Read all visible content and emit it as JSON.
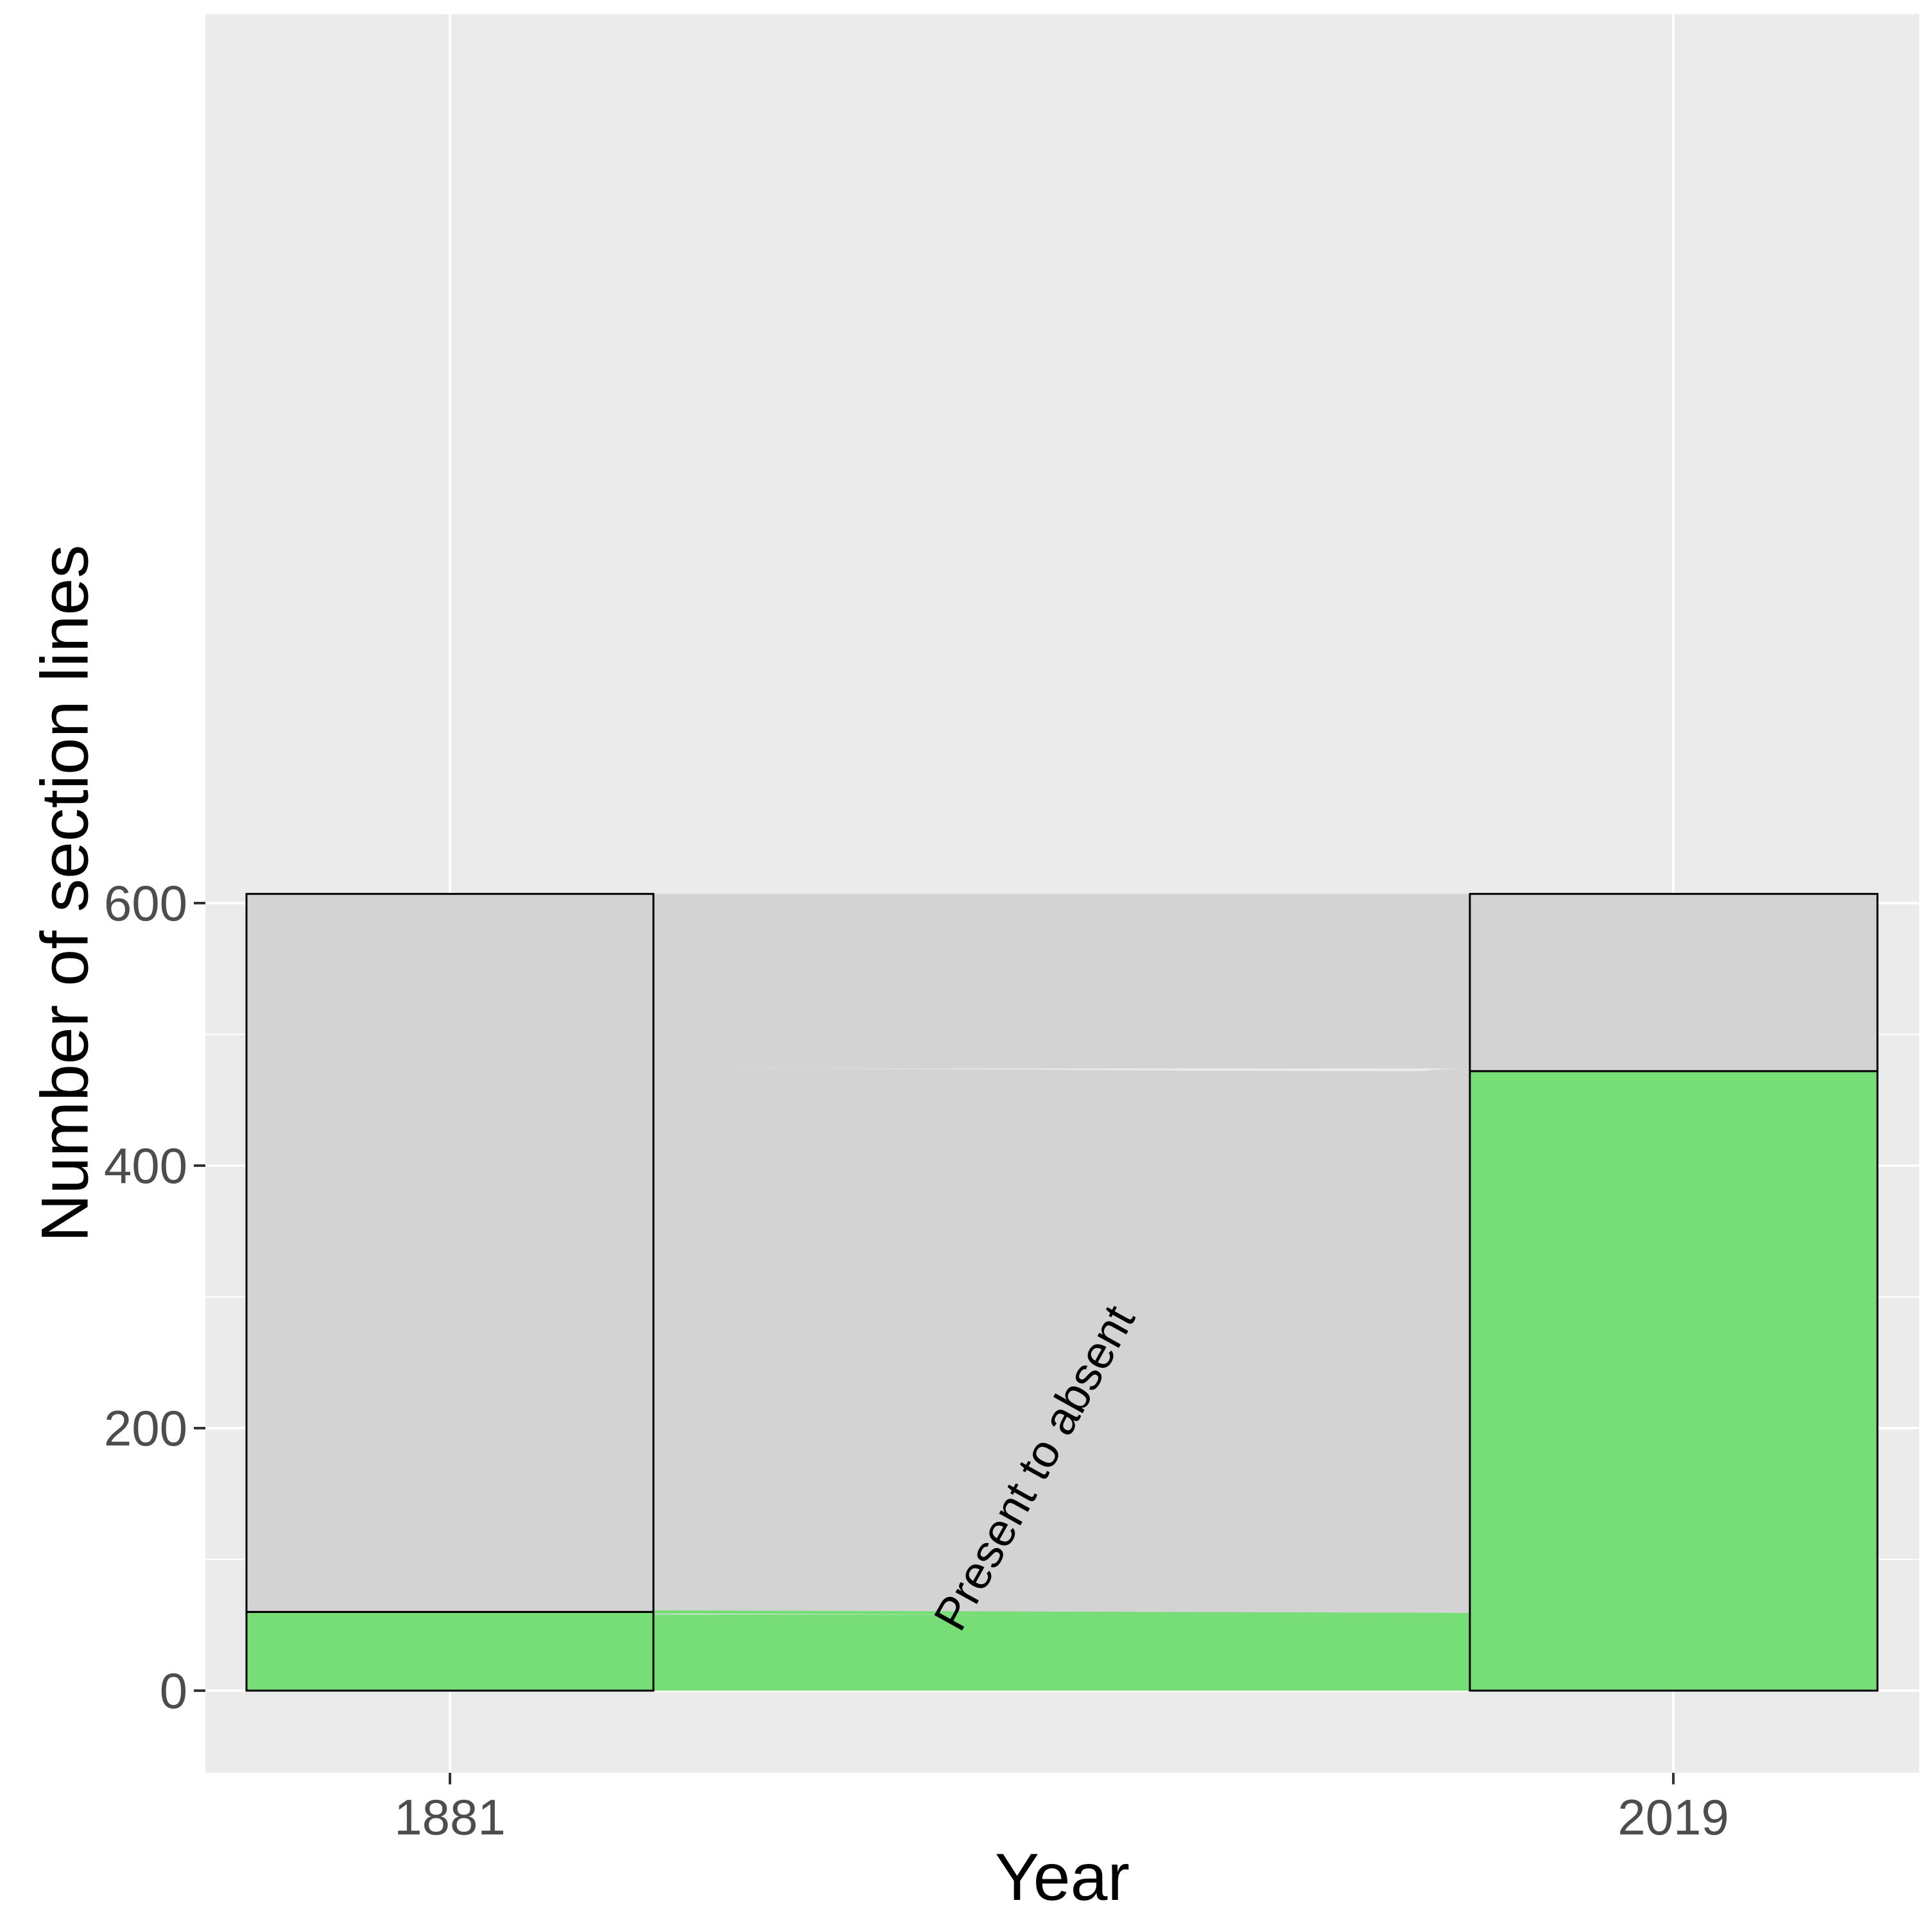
{
  "chart_data": {
    "type": "alluvial",
    "title": "",
    "xlabel": "Year",
    "ylabel": "Number of section lines",
    "categories": [
      "1881",
      "2019"
    ],
    "ylim": [
      -30,
      646
    ],
    "yticks": [
      0,
      200,
      400,
      600
    ],
    "grid": true,
    "legend": "none",
    "stratum_totals": [
      607,
      607
    ],
    "series": [
      {
        "state": "present",
        "values": [
          60,
          472
        ],
        "color": "#77dd77"
      },
      {
        "state": "absent",
        "values": [
          547,
          135
        ],
        "color": "#d3d3d3"
      }
    ],
    "flows": [
      {
        "from": "present",
        "to": "present",
        "value": 58,
        "color": "#77dd77"
      },
      {
        "from": "present",
        "to": "absent",
        "value": 2,
        "color": "#d3d3d3"
      },
      {
        "from": "absent",
        "to": "present",
        "value": 414,
        "color": "#d3d3d3",
        "outline": "#77dd77"
      },
      {
        "from": "absent",
        "to": "absent",
        "value": 133,
        "color": "#d3d3d3"
      }
    ],
    "annotations": [
      {
        "text": "Present to absent",
        "flow_index": 2
      }
    ],
    "colors": {
      "panel": "#ebebeb",
      "grid": "#ffffff",
      "present": "#77dd77",
      "absent": "#d3d3d3",
      "stratum_border": "#000000"
    }
  }
}
